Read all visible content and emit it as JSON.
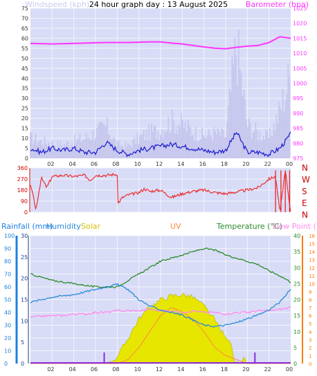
{
  "title": "24 hour graph day : 13 August 2025",
  "colors": {
    "bg": "#d8dcf6",
    "grid": "#f4f4fc",
    "wind_gust": "#c8c8ee",
    "wind_avg": "#1a1ad0",
    "baro": "#ff33ff",
    "dir": "#ee2222",
    "dir_axis": "#cc0000",
    "rain": "#1e7fe0",
    "hum": "#2a8ad8",
    "solar": "#e6e600",
    "solar_edge": "#b0b000",
    "uv": "#ff8844",
    "temp": "#2a8a2a",
    "dew": "#ff88ee",
    "uv_axis": "#ff7a00",
    "rain_tick": "#8e2ae0"
  },
  "panel1": {
    "left_label": "Windspeed (kph)",
    "right_label": "Barometer (hpa)",
    "left_ticks": [
      "0",
      "5",
      "10",
      "15",
      "20",
      "25",
      "30",
      "35",
      "40",
      "45",
      "50",
      "55",
      "60",
      "65",
      "70",
      "75"
    ],
    "right_ticks": [
      "975",
      "980",
      "985",
      "990",
      "995",
      "1000",
      "1005",
      "1010",
      "1015",
      "1020",
      "1025"
    ]
  },
  "panel2": {
    "left_ticks": [
      "0",
      "90",
      "180",
      "270",
      "360"
    ],
    "compass": [
      "N",
      "W",
      "S",
      "E",
      "N"
    ]
  },
  "panel3": {
    "labels": {
      "rainfall": "Rainfall (mm)",
      "humidity": "Humidity",
      "solar": "Solar",
      "uv": "UV",
      "temperature": "Temperature (°C)",
      "dewpoint": "Dew Point (°C)"
    },
    "hum_ticks": [
      "0",
      "10",
      "20",
      "30",
      "40",
      "50",
      "60",
      "70",
      "80",
      "90",
      "100"
    ],
    "rain_ticks": [
      "0",
      "5",
      "10",
      "15",
      "20",
      "25",
      "30"
    ],
    "temp_ticks": [
      "0",
      "5",
      "10",
      "15",
      "20",
      "25",
      "30",
      "35",
      "40"
    ],
    "uv_ticks": [
      "0",
      "1",
      "2",
      "3",
      "4",
      "5",
      "6",
      "7",
      "8",
      "9",
      "10",
      "11",
      "12",
      "13",
      "14",
      "15",
      "16"
    ]
  },
  "x_ticks": [
    "02",
    "04",
    "06",
    "08",
    "10",
    "12",
    "14",
    "16",
    "18",
    "20",
    "22",
    "00"
  ],
  "chart_data": [
    {
      "type": "line",
      "title": "24 hour graph day : 13 August 2025",
      "x_hours": [
        0,
        1,
        2,
        3,
        4,
        5,
        6,
        7,
        8,
        9,
        10,
        11,
        12,
        13,
        14,
        15,
        16,
        17,
        18,
        19,
        20,
        21,
        22,
        23,
        24
      ],
      "series": [
        {
          "name": "Windspeed (kph)",
          "axis": "left",
          "ylim": [
            0,
            75
          ],
          "values": [
            5,
            3,
            5,
            4,
            5,
            3,
            3,
            8,
            4,
            2,
            4,
            5,
            6,
            7,
            6,
            5,
            4,
            3,
            4,
            13,
            3,
            3,
            2,
            5,
            12
          ]
        },
        {
          "name": "Wind gust (kph)",
          "axis": "left",
          "ylim": [
            0,
            75
          ],
          "values": [
            12,
            10,
            9,
            8,
            10,
            12,
            15,
            19,
            8,
            7,
            12,
            15,
            17,
            22,
            20,
            16,
            13,
            15,
            13,
            68,
            20,
            15,
            12,
            28,
            50
          ]
        },
        {
          "name": "Barometer (hpa)",
          "axis": "right",
          "ylim": [
            975,
            1025
          ],
          "values": [
            1013.3,
            1013.2,
            1013.1,
            1013.2,
            1013.3,
            1013.4,
            1013.5,
            1013.6,
            1013.6,
            1013.6,
            1013.7,
            1013.8,
            1013.8,
            1013.4,
            1013.1,
            1012.6,
            1012.1,
            1011.7,
            1011.5,
            1012.0,
            1012.4,
            1012.6,
            1013.6,
            1015.5,
            1015.0
          ]
        }
      ]
    },
    {
      "type": "line",
      "x_hours": [
        0,
        0.5,
        1,
        1.5,
        2,
        3,
        4,
        5,
        5.5,
        6,
        7,
        8,
        8.05,
        8.5,
        9,
        10,
        10.5,
        11,
        12,
        13,
        14,
        15,
        16,
        17,
        18,
        19,
        20,
        21,
        22,
        22.6,
        23,
        23.5,
        24
      ],
      "series": [
        {
          "name": "Wind direction",
          "ylim": [
            0,
            360
          ],
          "values": [
            230,
            20,
            280,
            200,
            290,
            300,
            290,
            300,
            260,
            300,
            300,
            310,
            70,
            120,
            140,
            160,
            190,
            170,
            180,
            120,
            150,
            170,
            180,
            160,
            150,
            165,
            180,
            200,
            270,
            290,
            0,
            340,
            0
          ]
        }
      ]
    },
    {
      "type": "line",
      "x_hours": [
        0,
        1,
        2,
        3,
        4,
        5,
        6,
        7,
        8,
        9,
        10,
        11,
        12,
        13,
        14,
        15,
        16,
        17,
        18,
        19,
        20,
        21,
        22,
        23,
        24
      ],
      "series": [
        {
          "name": "Humidity",
          "axis": "humidity",
          "ylim": [
            0,
            100
          ],
          "values": [
            48,
            50,
            52,
            53,
            54,
            56,
            58,
            60,
            62,
            58,
            50,
            45,
            42,
            40,
            38,
            34,
            30,
            29,
            30,
            32,
            35,
            38,
            42,
            48,
            58
          ]
        },
        {
          "name": "Solar",
          "axis": "humidity",
          "ylim": [
            0,
            100
          ],
          "values": [
            0,
            0,
            0,
            0,
            0,
            0,
            0,
            0,
            5,
            20,
            35,
            44,
            50,
            53,
            54,
            52,
            45,
            34,
            20,
            8,
            1,
            0,
            0,
            0,
            0
          ]
        },
        {
          "name": "UV",
          "axis": "uv",
          "ylim": [
            0,
            16
          ],
          "values": [
            0,
            0,
            0,
            0,
            0,
            0,
            0,
            0,
            0,
            0.5,
            2,
            4,
            6,
            7,
            6.5,
            5.5,
            4,
            2,
            1,
            0.5,
            0,
            0,
            0,
            0,
            0
          ]
        },
        {
          "name": "Temperature (°C)",
          "axis": "temperature",
          "ylim": [
            0,
            40
          ],
          "values": [
            28,
            27,
            26,
            25.5,
            25,
            24.5,
            24,
            24,
            24,
            26,
            28,
            30,
            32,
            33,
            34,
            35,
            36,
            35.5,
            34,
            33,
            32,
            31,
            29,
            27.5,
            25.5
          ]
        },
        {
          "name": "Dew Point (°C)",
          "axis": "temperature",
          "ylim": [
            0,
            40
          ],
          "values": [
            14.5,
            14.8,
            15,
            15,
            15.5,
            15.5,
            16,
            16,
            16.5,
            16.5,
            16.5,
            17,
            16.5,
            16.5,
            16,
            16.5,
            16,
            16,
            15.5,
            16,
            16,
            16.5,
            16.5,
            17,
            17.5
          ]
        },
        {
          "name": "Rainfall (mm)",
          "axis": "rainfall",
          "ylim": [
            0,
            30
          ],
          "values": [
            0,
            0,
            0,
            0,
            0,
            0,
            0,
            0,
            0,
            0,
            0,
            0,
            0,
            0,
            0,
            0,
            0,
            0,
            0,
            0,
            0,
            0,
            0,
            0,
            0
          ],
          "markers_at_hours": [
            6.8,
            20.7
          ]
        }
      ]
    }
  ]
}
